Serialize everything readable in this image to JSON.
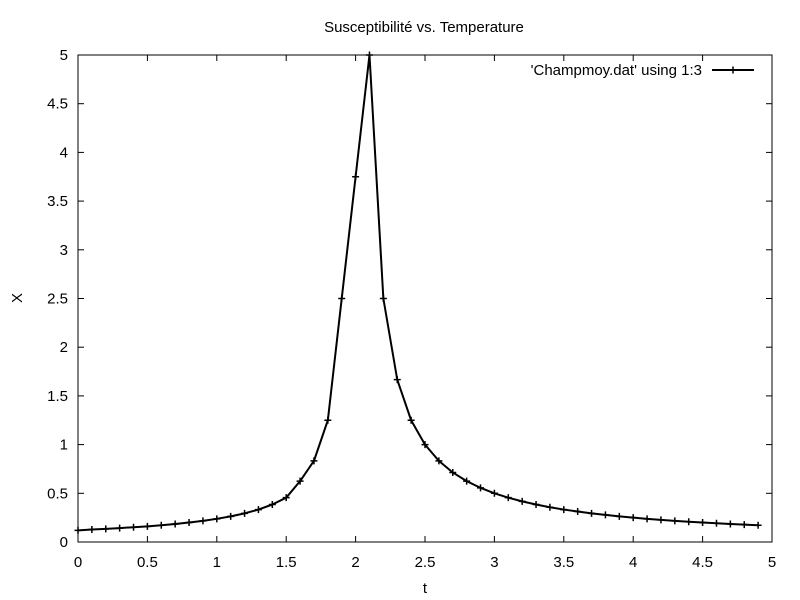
{
  "chart_data": {
    "type": "line",
    "title": "Susceptibilité vs.  Temperature",
    "xlabel": "t",
    "ylabel": "X",
    "xlim": [
      0,
      5
    ],
    "ylim": [
      0,
      5
    ],
    "xticks": [
      "0",
      "0.5",
      "1",
      "1.5",
      "2",
      "2.5",
      "3",
      "3.5",
      "4",
      "4.5",
      "5"
    ],
    "yticks": [
      "0",
      "0.5",
      "1",
      "1.5",
      "2",
      "2.5",
      "3",
      "3.5",
      "4",
      "4.5",
      "5"
    ],
    "grid": false,
    "legend_position": "top-right",
    "series": [
      {
        "name": "'Champmoy.dat' using 1:3",
        "color": "#000000",
        "marker": "plus",
        "x": [
          0,
          0.1,
          0.2,
          0.3,
          0.4,
          0.5,
          0.6,
          0.7,
          0.8,
          0.9,
          1.0,
          1.1,
          1.2,
          1.3,
          1.4,
          1.5,
          1.6,
          1.7,
          1.8,
          1.9,
          2.0,
          2.1,
          2.2,
          2.3,
          2.4,
          2.5,
          2.6,
          2.7,
          2.8,
          2.9,
          3.0,
          3.1,
          3.2,
          3.3,
          3.4,
          3.5,
          3.6,
          3.7,
          3.8,
          3.9,
          4.0,
          4.1,
          4.2,
          4.3,
          4.4,
          4.5,
          4.6,
          4.7,
          4.8,
          4.9
        ],
        "y": [
          0.119,
          0.128,
          0.135,
          0.143,
          0.152,
          0.161,
          0.172,
          0.185,
          0.2,
          0.217,
          0.238,
          0.263,
          0.294,
          0.333,
          0.385,
          0.455,
          0.625,
          0.833,
          1.25,
          2.5,
          3.75,
          5.0,
          2.5,
          1.667,
          1.25,
          1.0,
          0.833,
          0.714,
          0.625,
          0.556,
          0.5,
          0.455,
          0.417,
          0.385,
          0.357,
          0.333,
          0.313,
          0.294,
          0.278,
          0.263,
          0.25,
          0.238,
          0.227,
          0.217,
          0.208,
          0.2,
          0.192,
          0.185,
          0.179,
          0.172
        ]
      }
    ]
  }
}
